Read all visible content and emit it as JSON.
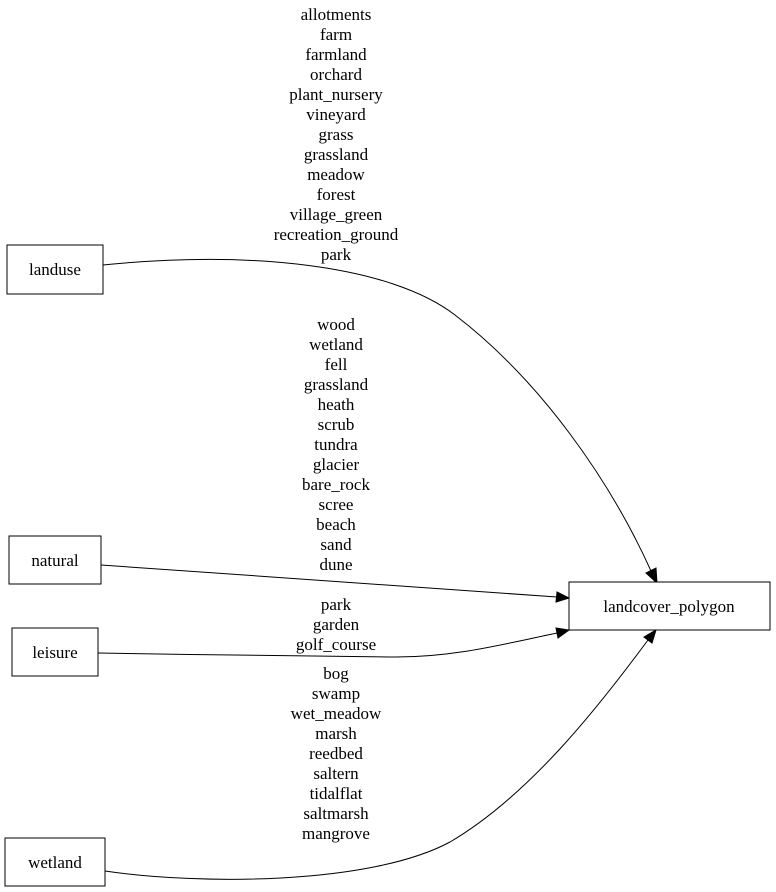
{
  "nodes": {
    "landuse": "landuse",
    "natural": "natural",
    "leisure": "leisure",
    "wetland": "wetland",
    "target": "landcover_polygon"
  },
  "edges": [
    {
      "from": "landuse",
      "to": "landcover_polygon",
      "labels": [
        "allotments",
        "farm",
        "farmland",
        "orchard",
        "plant_nursery",
        "vineyard",
        "grass",
        "grassland",
        "meadow",
        "forest",
        "village_green",
        "recreation_ground",
        "park"
      ]
    },
    {
      "from": "natural",
      "to": "landcover_polygon",
      "labels": [
        "wood",
        "wetland",
        "fell",
        "grassland",
        "heath",
        "scrub",
        "tundra",
        "glacier",
        "bare_rock",
        "scree",
        "beach",
        "sand",
        "dune"
      ]
    },
    {
      "from": "leisure",
      "to": "landcover_polygon",
      "labels": [
        "park",
        "garden",
        "golf_course"
      ]
    },
    {
      "from": "wetland",
      "to": "landcover_polygon",
      "labels": [
        "bog",
        "swamp",
        "wet_meadow",
        "marsh",
        "reedbed",
        "saltern",
        "tidalflat",
        "saltmarsh",
        "mangrove"
      ]
    }
  ]
}
